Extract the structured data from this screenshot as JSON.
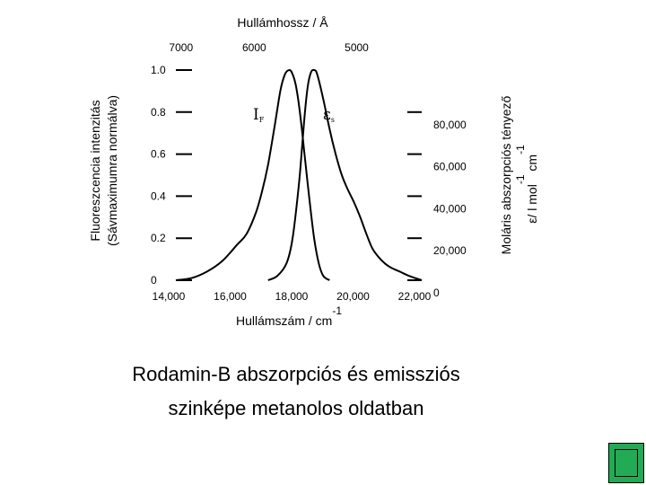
{
  "chart_data": {
    "type": "line",
    "title": "",
    "xlabel": "Hullámszám / cm",
    "xlabel_sup": "-1",
    "x_ticks": [
      14000,
      16000,
      18000,
      20000,
      22000
    ],
    "x_tick_labels": [
      "14,000",
      "16,000",
      "18,000",
      "20,000",
      "22,000"
    ],
    "xlim": [
      14000,
      22000
    ],
    "top_xlabel": "Hullámhossz / Å",
    "top_ticks": [
      7000,
      6000,
      5000
    ],
    "top_tick_labels": [
      "7000",
      "6000",
      "5000"
    ],
    "ylabel_left_line1": "Fluoreszcencia intenzitás",
    "ylabel_left_line2": "(Sávmaximumra normálva)",
    "y_ticks": [
      0,
      0.2,
      0.4,
      0.6,
      0.8,
      1.0
    ],
    "y_tick_labels": [
      "0",
      "0.2",
      "0.4",
      "0.6",
      "0.8",
      "1.0"
    ],
    "ylim": [
      0,
      1.0
    ],
    "ylabel_right_line1": "Moláris abszorpciós tényező",
    "ylabel_right_line2_a": "ε/ l mol",
    "ylabel_right_sup1": "-1",
    "ylabel_right_line2_b": " cm",
    "ylabel_right_sup2": "-1",
    "right_ticks": [
      0,
      20000,
      40000,
      60000,
      80000
    ],
    "right_tick_labels": [
      "0",
      "20,000",
      "40,000",
      "60,000",
      "80,000"
    ],
    "right_ylim": [
      0,
      100000
    ],
    "grid": false,
    "series": [
      {
        "name": "I",
        "subscript": "F",
        "color": "#000000",
        "x": [
          14000,
          14500,
          15000,
          15500,
          16000,
          16300,
          16600,
          16800,
          17000,
          17200,
          17400,
          17550,
          17700,
          17800,
          17900,
          18000,
          18100,
          18200,
          18350,
          18500,
          18650,
          18800,
          19000
        ],
        "y": [
          0.0,
          0.01,
          0.04,
          0.09,
          0.17,
          0.22,
          0.32,
          0.42,
          0.55,
          0.72,
          0.9,
          0.98,
          1.0,
          0.98,
          0.93,
          0.84,
          0.72,
          0.58,
          0.38,
          0.2,
          0.08,
          0.02,
          0.0
        ]
      },
      {
        "name": "ε",
        "subscript": "s",
        "color": "#000000",
        "x": [
          17000,
          17300,
          17600,
          17800,
          18000,
          18100,
          18200,
          18300,
          18400,
          18500,
          18600,
          18800,
          19000,
          19200,
          19400,
          19600,
          19800,
          20000,
          20200,
          20400,
          20600,
          20800,
          21000,
          21300,
          21600,
          22000
        ],
        "y": [
          0.0,
          0.02,
          0.08,
          0.2,
          0.45,
          0.62,
          0.8,
          0.93,
          0.99,
          1.0,
          0.98,
          0.86,
          0.72,
          0.6,
          0.5,
          0.43,
          0.37,
          0.3,
          0.22,
          0.15,
          0.11,
          0.08,
          0.06,
          0.04,
          0.02,
          0.0
        ]
      }
    ]
  },
  "caption": {
    "line1": "Rodamin-B abszorpciós és emissziós",
    "line2": "szinképe metanolos oldatban"
  }
}
